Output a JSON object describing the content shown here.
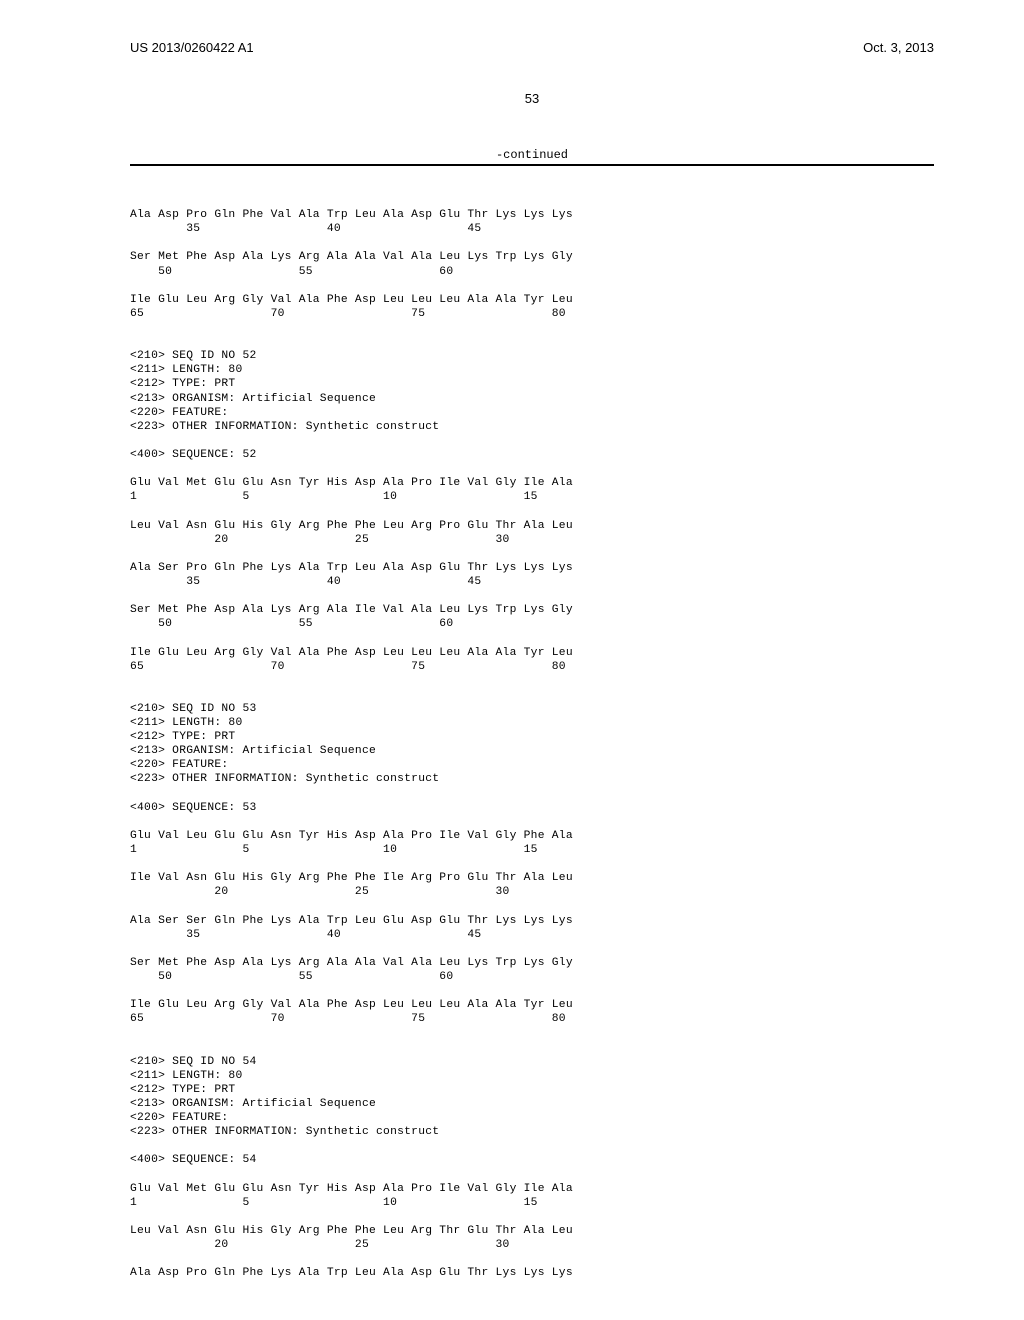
{
  "header": {
    "pub_number": "US 2013/0260422 A1",
    "pub_date": "Oct. 3, 2013"
  },
  "page_number": "53",
  "continued_label": "-continued",
  "seq_row_35_45": "Ala Asp Pro Gln Phe Val Ala Trp Leu Ala Asp Glu Thr Lys Lys Lys",
  "seq_num_35_45": "        35                  40                  45",
  "seq_row_50_60": "Ser Met Phe Asp Ala Lys Arg Ala Ala Val Ala Leu Lys Trp Lys Gly",
  "seq_num_50_60": "    50                  55                  60",
  "seq_row_65_80": "Ile Glu Leu Arg Gly Val Ala Phe Asp Leu Leu Leu Ala Ala Tyr Leu",
  "seq_num_65_80": "65                  70                  75                  80",
  "seq52_header": {
    "id": "<210> SEQ ID NO 52",
    "len": "<211> LENGTH: 80",
    "type": "<212> TYPE: PRT",
    "org": "<213> ORGANISM: Artificial Sequence",
    "feat": "<220> FEATURE:",
    "other": "<223> OTHER INFORMATION: Synthetic construct",
    "seq": "<400> SEQUENCE: 52"
  },
  "seq52_r1": "Glu Val Met Glu Glu Asn Tyr His Asp Ala Pro Ile Val Gly Ile Ala",
  "seq52_n1": "1               5                   10                  15",
  "seq52_r2": "Leu Val Asn Glu His Gly Arg Phe Phe Leu Arg Pro Glu Thr Ala Leu",
  "seq52_n2": "            20                  25                  30",
  "seq52_r3": "Ala Ser Pro Gln Phe Lys Ala Trp Leu Ala Asp Glu Thr Lys Lys Lys",
  "seq52_n3": "        35                  40                  45",
  "seq52_r4": "Ser Met Phe Asp Ala Lys Arg Ala Ile Val Ala Leu Lys Trp Lys Gly",
  "seq52_n4": "    50                  55                  60",
  "seq52_r5": "Ile Glu Leu Arg Gly Val Ala Phe Asp Leu Leu Leu Ala Ala Tyr Leu",
  "seq52_n5": "65                  70                  75                  80",
  "seq53_header": {
    "id": "<210> SEQ ID NO 53",
    "len": "<211> LENGTH: 80",
    "type": "<212> TYPE: PRT",
    "org": "<213> ORGANISM: Artificial Sequence",
    "feat": "<220> FEATURE:",
    "other": "<223> OTHER INFORMATION: Synthetic construct",
    "seq": "<400> SEQUENCE: 53"
  },
  "seq53_r1": "Glu Val Leu Glu Glu Asn Tyr His Asp Ala Pro Ile Val Gly Phe Ala",
  "seq53_n1": "1               5                   10                  15",
  "seq53_r2": "Ile Val Asn Glu His Gly Arg Phe Phe Ile Arg Pro Glu Thr Ala Leu",
  "seq53_n2": "            20                  25                  30",
  "seq53_r3": "Ala Ser Ser Gln Phe Lys Ala Trp Leu Glu Asp Glu Thr Lys Lys Lys",
  "seq53_n3": "        35                  40                  45",
  "seq53_r4": "Ser Met Phe Asp Ala Lys Arg Ala Ala Val Ala Leu Lys Trp Lys Gly",
  "seq53_n4": "    50                  55                  60",
  "seq53_r5": "Ile Glu Leu Arg Gly Val Ala Phe Asp Leu Leu Leu Ala Ala Tyr Leu",
  "seq53_n5": "65                  70                  75                  80",
  "seq54_header": {
    "id": "<210> SEQ ID NO 54",
    "len": "<211> LENGTH: 80",
    "type": "<212> TYPE: PRT",
    "org": "<213> ORGANISM: Artificial Sequence",
    "feat": "<220> FEATURE:",
    "other": "<223> OTHER INFORMATION: Synthetic construct",
    "seq": "<400> SEQUENCE: 54"
  },
  "seq54_r1": "Glu Val Met Glu Glu Asn Tyr His Asp Ala Pro Ile Val Gly Ile Ala",
  "seq54_n1": "1               5                   10                  15",
  "seq54_r2": "Leu Val Asn Glu His Gly Arg Phe Phe Leu Arg Thr Glu Thr Ala Leu",
  "seq54_n2": "            20                  25                  30",
  "seq54_r3": "Ala Asp Pro Gln Phe Lys Ala Trp Leu Ala Asp Glu Thr Lys Lys Lys"
}
